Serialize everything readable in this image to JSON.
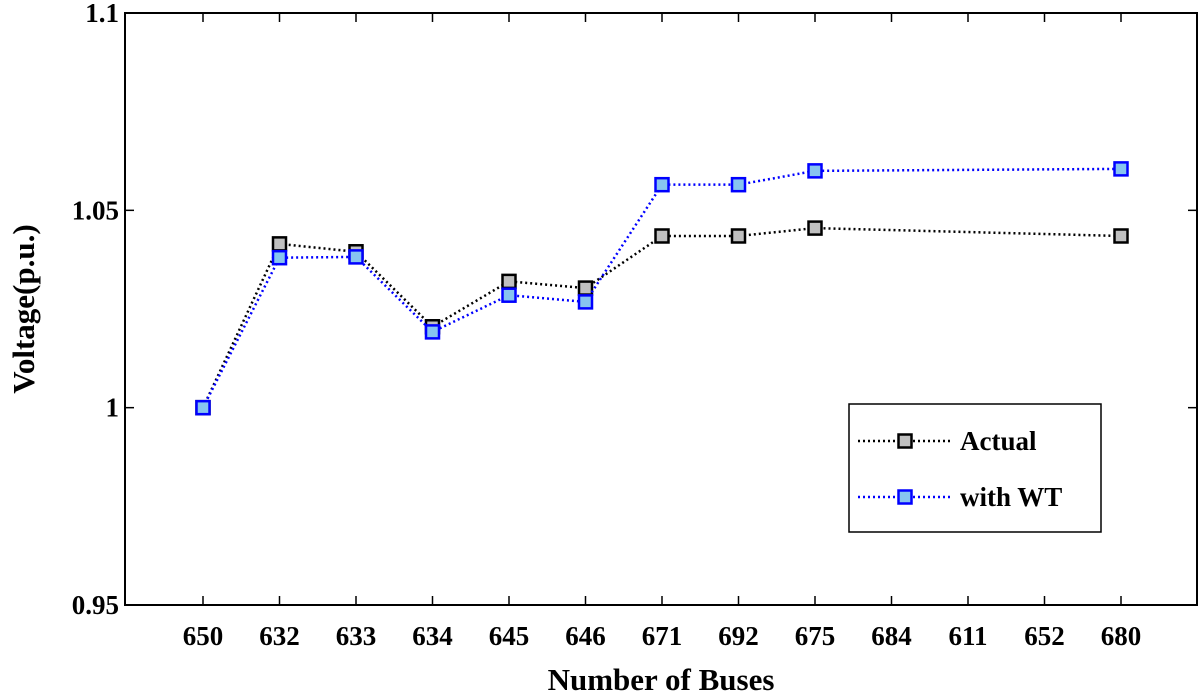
{
  "chart_data": {
    "type": "line",
    "categories": [
      "650",
      "632",
      "633",
      "634",
      "645",
      "646",
      "671",
      "692",
      "675",
      "684",
      "611",
      "652",
      "680"
    ],
    "xlabel": "Number of Buses",
    "ylabel": "Voltage(p.u.)",
    "ylim": [
      0.95,
      1.1
    ],
    "yticks": [
      {
        "value": 0.95,
        "label": "0.95"
      },
      {
        "value": 1.0,
        "label": "1"
      },
      {
        "value": 1.05,
        "label": "1.05"
      },
      {
        "value": 1.1,
        "label": "1.1"
      }
    ],
    "grid": false,
    "legend_position": "bottom-right",
    "series": [
      {
        "name": "Actual",
        "color": "#000000",
        "marker_fill": "#c0c0c0",
        "points": [
          {
            "x": "650",
            "y": 1.0
          },
          {
            "x": "632",
            "y": 1.0415
          },
          {
            "x": "633",
            "y": 1.0395
          },
          {
            "x": "634",
            "y": 1.0205
          },
          {
            "x": "645",
            "y": 1.032
          },
          {
            "x": "646",
            "y": 1.0303
          },
          {
            "x": "671",
            "y": 1.0435
          },
          {
            "x": "692",
            "y": 1.0435
          },
          {
            "x": "675",
            "y": 1.0455
          },
          {
            "x": "680",
            "y": 1.0435
          }
        ]
      },
      {
        "name": "with WT",
        "color": "#0000ff",
        "marker_fill": "#87c4f0",
        "points": [
          {
            "x": "650",
            "y": 1.0
          },
          {
            "x": "632",
            "y": 1.038
          },
          {
            "x": "633",
            "y": 1.0382
          },
          {
            "x": "634",
            "y": 1.0192
          },
          {
            "x": "645",
            "y": 1.0285
          },
          {
            "x": "646",
            "y": 1.0268
          },
          {
            "x": "671",
            "y": 1.0565
          },
          {
            "x": "692",
            "y": 1.0565
          },
          {
            "x": "675",
            "y": 1.06
          },
          {
            "x": "680",
            "y": 1.0605
          }
        ]
      }
    ]
  }
}
